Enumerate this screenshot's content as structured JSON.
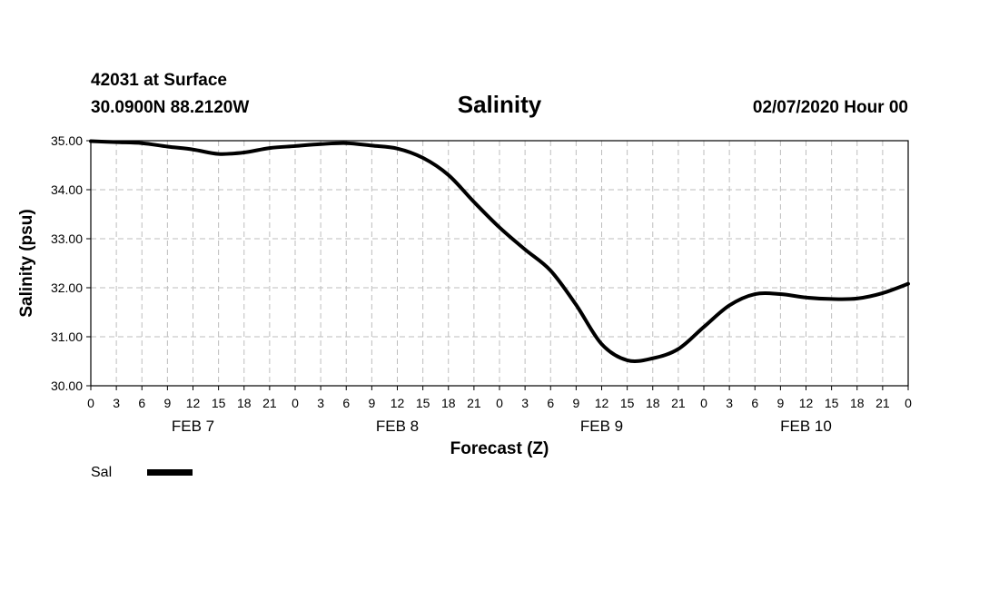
{
  "header": {
    "station": "42031 at Surface",
    "coords": "30.0900N 88.2120W",
    "date": "02/07/2020 Hour 00"
  },
  "chart_data": {
    "type": "line",
    "title": "Salinity",
    "ylabel": "Salinity (psu)",
    "xlabel": "Forecast (Z)",
    "ylim": [
      30.0,
      35.0
    ],
    "y_ticks": [
      "30.00",
      "31.00",
      "32.00",
      "33.00",
      "34.00",
      "35.00"
    ],
    "x_range_hours": [
      0,
      96
    ],
    "x_tick_labels": [
      "0",
      "3",
      "6",
      "9",
      "12",
      "15",
      "18",
      "21",
      "0",
      "3",
      "6",
      "9",
      "12",
      "15",
      "18",
      "21",
      "0",
      "3",
      "6",
      "9",
      "12",
      "15",
      "18",
      "21",
      "0",
      "3",
      "6",
      "9",
      "12",
      "15",
      "18",
      "21",
      "0"
    ],
    "day_labels": [
      "FEB 7",
      "FEB 8",
      "FEB 9",
      "FEB 10"
    ],
    "grid": true,
    "legend_position": "bottom-left",
    "series": [
      {
        "name": "Sal",
        "color": "#000000",
        "x": [
          0,
          3,
          6,
          9,
          12,
          15,
          18,
          21,
          24,
          27,
          30,
          33,
          36,
          39,
          42,
          45,
          48,
          51,
          54,
          57,
          60,
          63,
          66,
          69,
          72,
          75,
          78,
          81,
          84,
          87,
          90,
          93,
          96
        ],
        "y": [
          34.99,
          34.97,
          34.95,
          34.88,
          34.82,
          34.73,
          34.76,
          34.85,
          34.89,
          34.93,
          34.95,
          34.9,
          34.84,
          34.65,
          34.3,
          33.75,
          33.23,
          32.78,
          32.35,
          31.65,
          30.85,
          30.52,
          30.56,
          30.75,
          31.2,
          31.64,
          31.87,
          31.87,
          31.8,
          31.77,
          31.78,
          31.89,
          32.08
        ]
      }
    ]
  }
}
